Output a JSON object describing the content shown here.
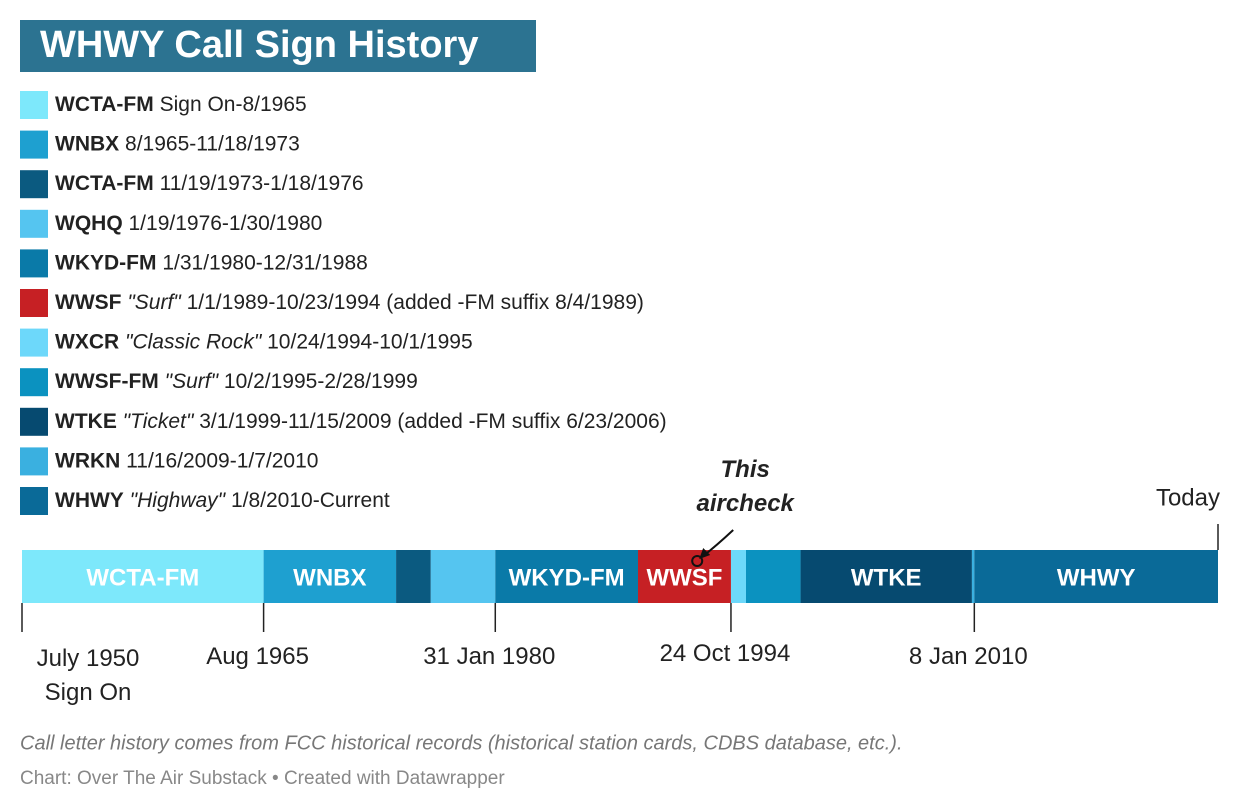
{
  "chart_data": {
    "type": "timeline",
    "title": "WHWY Call Sign History",
    "segments": [
      {
        "name": "WCTA-FM",
        "nickname": null,
        "dates": "Sign On-8/1965",
        "color": "#7de8fb",
        "start": 1950.5,
        "end": 1965.6
      },
      {
        "name": "WNBX",
        "nickname": null,
        "dates": "8/1965-11/18/1973",
        "color": "#1ea0d0",
        "start": 1965.6,
        "end": 1973.88
      },
      {
        "name": "WCTA-FM",
        "nickname": null,
        "dates": "11/19/1973-1/18/1976",
        "color": "#0b5a80",
        "start": 1973.88,
        "end": 1976.05
      },
      {
        "name": "WQHQ",
        "nickname": null,
        "dates": "1/19/1976-1/30/1980",
        "color": "#55c5f0",
        "start": 1976.05,
        "end": 1980.08
      },
      {
        "name": "WKYD-FM",
        "nickname": null,
        "dates": "1/31/1980-12/31/1988",
        "color": "#0a7aa8",
        "start": 1980.08,
        "end": 1989.0
      },
      {
        "name": "WWSF",
        "nickname": "\"Surf\"",
        "dates": "1/1/1989-10/23/1994 (added -FM suffix 8/4/1989)",
        "color": "#c62024",
        "start": 1989.0,
        "end": 1994.81
      },
      {
        "name": "WXCR",
        "nickname": "\"Classic Rock\"",
        "dates": "10/24/1994-10/1/1995",
        "color": "#6dd8fa",
        "start": 1994.81,
        "end": 1995.75
      },
      {
        "name": "WWSF-FM",
        "nickname": "\"Surf\"",
        "dates": "10/2/1995-2/28/1999",
        "color": "#0b92c0",
        "start": 1995.75,
        "end": 1999.16
      },
      {
        "name": "WTKE",
        "nickname": "\"Ticket\"",
        "dates": "3/1/1999-11/15/2009 (added -FM suffix 6/23/2006)",
        "color": "#064a70",
        "start": 1999.16,
        "end": 2009.87
      },
      {
        "name": "WRKN",
        "nickname": null,
        "dates": "11/16/2009-1/7/2010",
        "color": "#3ab0e0",
        "start": 2009.87,
        "end": 2010.02
      },
      {
        "name": "WHWY",
        "nickname": "\"Highway\"",
        "dates": "1/8/2010-Current",
        "color": "#0a6a98",
        "start": 2010.02,
        "end": 2025.25
      }
    ],
    "bar_labels": [
      "WCTA-FM",
      "WNBX",
      null,
      null,
      "WKYD-FM",
      "WWSF",
      null,
      null,
      "WTKE",
      null,
      "WHWY"
    ],
    "xlim": [
      1950.5,
      2025.25
    ],
    "xticks": [
      {
        "value": 1950.5,
        "label": "July 1950\nSign On"
      },
      {
        "value": 1965.6,
        "label": "Aug 1965"
      },
      {
        "value": 1980.08,
        "label": "31 Jan 1980"
      },
      {
        "value": 1994.81,
        "label": "24 Oct 1994"
      },
      {
        "value": 2010.02,
        "label": "8 Jan 2010"
      }
    ],
    "end_marker": {
      "value": 2025.25,
      "label": "Today"
    },
    "annotation": {
      "text": "This\naircheck",
      "x": 1992.7
    },
    "note": "Call letter history comes from FCC historical records (historical station cards, CDBS database, etc.).",
    "source": "Chart: Over The Air Substack • Created with Datawrapper"
  }
}
